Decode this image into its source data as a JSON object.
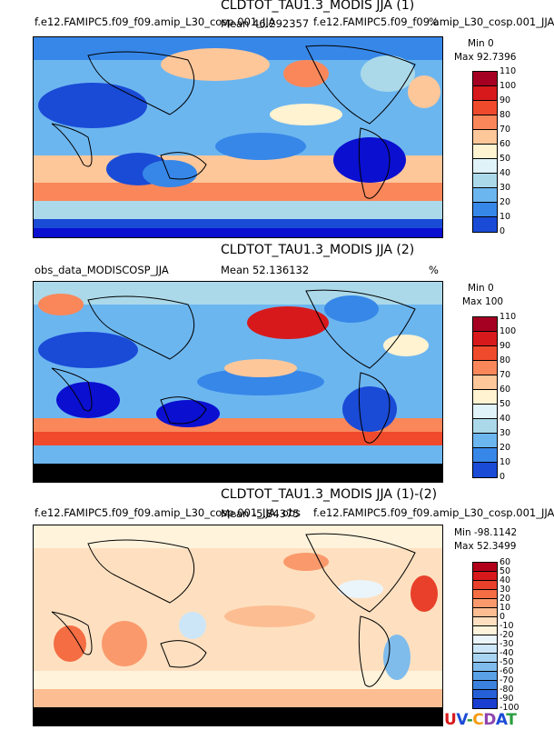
{
  "panels": [
    {
      "title": "CLDTOT_TAU1.3_MODIS JJA (1)",
      "case_label": "f.e12.FAMIPC5.f09_f09.amip_L30_cosp.001_JJA",
      "case_label_overlap": "f.e12.FAMIPC5.f09_f09.amip_L30_cosp.001_JJA",
      "mean_label": "Mean 46.292357",
      "units": "%",
      "min_label": "Min 0",
      "max_label": "Max 92.7396",
      "colorbar_ticks": [
        "110",
        "100",
        "90",
        "80",
        "70",
        "60",
        "50",
        "40",
        "30",
        "20",
        "10",
        "0"
      ],
      "colorbar_colors": [
        "#a50021",
        "#d7191c",
        "#f04a2d",
        "#f9875a",
        "#fdc79a",
        "#fff3d1",
        "#e0f3f8",
        "#abd9e9",
        "#6cb6f0",
        "#3787e8",
        "#1a4bd6",
        "#0a0fd0"
      ]
    },
    {
      "title": "CLDTOT_TAU1.3_MODIS JJA (2)",
      "case_label": "obs_data_MODISCOSP_JJA",
      "mean_label": "Mean 52.136132",
      "units": "%",
      "min_label": "Min 0",
      "max_label": "Max 100",
      "colorbar_ticks": [
        "110",
        "100",
        "90",
        "80",
        "70",
        "60",
        "50",
        "40",
        "30",
        "20",
        "10",
        "0"
      ],
      "colorbar_colors": [
        "#a50021",
        "#d7191c",
        "#f04a2d",
        "#f9875a",
        "#fdc79a",
        "#fff3d1",
        "#e0f3f8",
        "#abd9e9",
        "#6cb6f0",
        "#3787e8",
        "#1a4bd6",
        "#0a0fd0"
      ]
    },
    {
      "title": "CLDTOT_TAU1.3_MODIS JJA (1)-(2)",
      "case_label": "f.e12.FAMIPC5.f09_f09.amip_L30_cosp.001_JJA, obs",
      "case_label_overlap": "f.e12.FAMIPC5.f09_f09.amip_L30_cosp.001_JJA",
      "mean_label": "Mean -5.84375",
      "units": "",
      "min_label": "Min -98.1142",
      "max_label": "Max 52.3499",
      "colorbar_ticks": [
        "60",
        "50",
        "40",
        "30",
        "20",
        "10",
        "0",
        "-10",
        "-20",
        "-30",
        "-40",
        "-50",
        "-60",
        "-70",
        "-80",
        "-90",
        "-100"
      ],
      "colorbar_colors": [
        "#b2001a",
        "#d7191c",
        "#e8402a",
        "#f46d43",
        "#fa9a6c",
        "#fdbd92",
        "#fee0c0",
        "#fff3dc",
        "#eaf4fb",
        "#cde6f7",
        "#a8d4f2",
        "#7fbcec",
        "#5aa1e6",
        "#3b82df",
        "#2560d6",
        "#1a3fd0",
        "#0d14c9"
      ]
    }
  ],
  "logo_text": "UV-CDAT",
  "colors": {
    "ocean_background": "#6cb6f0",
    "antarctic_mask": "#000000"
  }
}
